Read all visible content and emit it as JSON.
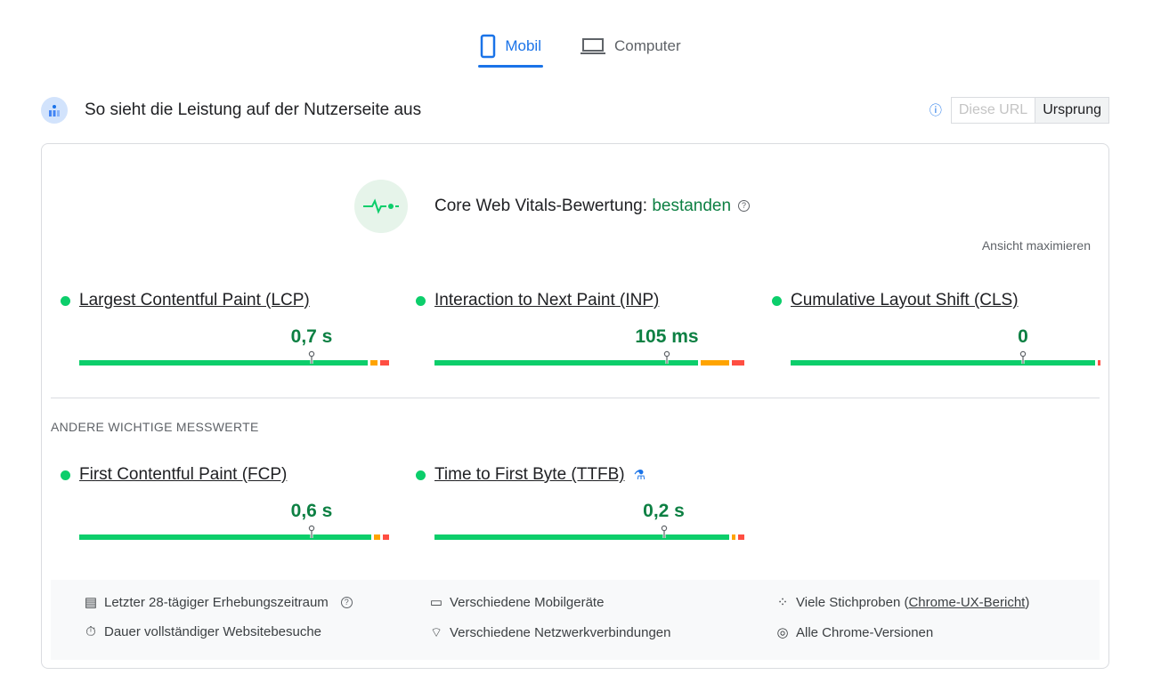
{
  "tabs": [
    {
      "label": "Mobil",
      "icon": "smartphone-icon",
      "active": true
    },
    {
      "label": "Computer",
      "icon": "laptop-icon",
      "active": false
    }
  ],
  "header": {
    "title": "So sieht die Leistung auf der Nutzerseite aus",
    "scope_options": [
      "Diese URL",
      "Ursprung"
    ],
    "selected": "Ursprung"
  },
  "assessment": {
    "label": "Core Web Vitals-Bewertung:",
    "status": "bestanden",
    "maximize": "Ansicht maximieren"
  },
  "colors": {
    "good": "#0cce6b",
    "needs_improvement": "#ffa400",
    "poor": "#ff4e42",
    "accent": "#1a73e8"
  },
  "core_metrics": [
    {
      "name": "Largest Contentful Paint (LCP)",
      "value": "0,7 s",
      "distribution": [
        94,
        3,
        3
      ],
      "marker": 75
    },
    {
      "name": "Interaction to Next Paint (INP)",
      "value": "105 ms",
      "distribution": [
        86,
        10,
        4
      ],
      "marker": 75
    },
    {
      "name": "Cumulative Layout Shift (CLS)",
      "value": "0",
      "distribution": [
        99,
        0,
        1
      ],
      "marker": 75
    }
  ],
  "other_heading": "ANDERE WICHTIGE MESSWERTE",
  "other_metrics": [
    {
      "name": "First Contentful Paint (FCP)",
      "value": "0,6 s",
      "distribution": [
        95,
        3,
        2
      ],
      "marker": 75
    },
    {
      "name": "Time to First Byte (TTFB)",
      "value": "0,2 s",
      "distribution": [
        96,
        2,
        2
      ],
      "marker": 74,
      "experimental": true
    }
  ],
  "footer": {
    "period": "Letzter 28-tägiger Erhebungszeitraum",
    "duration": "Dauer vollständiger Websitebesuche",
    "devices": "Verschiedene Mobilgeräte",
    "network": "Verschiedene Netzwerkverbindungen",
    "samples_prefix": "Viele Stichproben (",
    "samples_link": "Chrome-UX-Bericht",
    "samples_suffix": ")",
    "versions": "Alle Chrome-Versionen"
  }
}
